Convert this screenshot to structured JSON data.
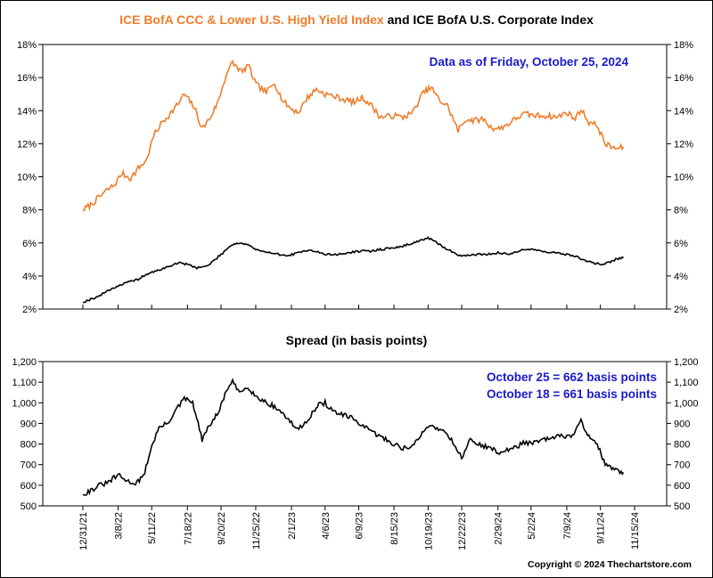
{
  "chart_data": [
    {
      "type": "line",
      "title_part1": "ICE BofA CCC & Lower U.S. High Yield Index",
      "title_part2": " and ICE BofA U.S. Corporate Index",
      "annotation": "Data as of Friday, October 25, 2024",
      "ylim": [
        2,
        18
      ],
      "yticks": [
        2,
        4,
        6,
        8,
        10,
        12,
        14,
        16,
        18
      ],
      "ytick_labels": [
        "2%",
        "4%",
        "6%",
        "8%",
        "10%",
        "12%",
        "14%",
        "16%",
        "18%"
      ],
      "grid": false,
      "colors": {
        "ccc": "#f07d2a",
        "corporate": "#000000",
        "title1": "#f07d2a",
        "annotation": "#1a1acc"
      },
      "series": [
        {
          "key": "ccc",
          "points": [
            [
              "2021-12-31",
              8.0
            ],
            [
              "2022-01-15",
              8.3
            ],
            [
              "2022-02-01",
              8.8
            ],
            [
              "2022-02-15",
              9.2
            ],
            [
              "2022-03-01",
              9.5
            ],
            [
              "2022-03-15",
              10.2
            ],
            [
              "2022-04-01",
              9.9
            ],
            [
              "2022-04-15",
              10.5
            ],
            [
              "2022-05-01",
              11.0
            ],
            [
              "2022-05-15",
              12.5
            ],
            [
              "2022-05-31",
              13.3
            ],
            [
              "2022-06-15",
              13.8
            ],
            [
              "2022-06-30",
              14.4
            ],
            [
              "2022-07-12",
              15.0
            ],
            [
              "2022-07-31",
              14.2
            ],
            [
              "2022-08-15",
              12.9
            ],
            [
              "2022-08-31",
              13.6
            ],
            [
              "2022-09-15",
              14.6
            ],
            [
              "2022-09-30",
              16.2
            ],
            [
              "2022-10-12",
              16.9
            ],
            [
              "2022-10-31",
              16.3
            ],
            [
              "2022-11-10",
              16.8
            ],
            [
              "2022-11-25",
              15.6
            ],
            [
              "2022-12-15",
              15.1
            ],
            [
              "2022-12-31",
              15.7
            ],
            [
              "2023-01-15",
              14.6
            ],
            [
              "2023-02-01",
              14.1
            ],
            [
              "2023-02-15",
              13.9
            ],
            [
              "2023-03-01",
              14.7
            ],
            [
              "2023-03-20",
              15.3
            ],
            [
              "2023-04-06",
              15.0
            ],
            [
              "2023-04-20",
              14.9
            ],
            [
              "2023-05-10",
              14.7
            ],
            [
              "2023-06-01",
              14.5
            ],
            [
              "2023-06-15",
              14.8
            ],
            [
              "2023-07-01",
              14.4
            ],
            [
              "2023-07-20",
              13.6
            ],
            [
              "2023-08-15",
              13.7
            ],
            [
              "2023-09-01",
              13.6
            ],
            [
              "2023-09-20",
              13.9
            ],
            [
              "2023-10-10",
              15.1
            ],
            [
              "2023-10-25",
              15.4
            ],
            [
              "2023-11-10",
              14.6
            ],
            [
              "2023-11-25",
              14.3
            ],
            [
              "2023-12-15",
              12.8
            ],
            [
              "2023-12-31",
              13.5
            ],
            [
              "2024-01-15",
              13.4
            ],
            [
              "2024-02-01",
              13.5
            ],
            [
              "2024-02-15",
              13.0
            ],
            [
              "2024-03-01",
              12.9
            ],
            [
              "2024-03-20",
              13.2
            ],
            [
              "2024-04-06",
              13.6
            ],
            [
              "2024-04-20",
              13.8
            ],
            [
              "2024-05-10",
              13.7
            ],
            [
              "2024-06-01",
              13.7
            ],
            [
              "2024-06-20",
              13.6
            ],
            [
              "2024-07-09",
              13.9
            ],
            [
              "2024-07-25",
              13.5
            ],
            [
              "2024-08-05",
              14.1
            ],
            [
              "2024-08-20",
              13.3
            ],
            [
              "2024-09-05",
              13.1
            ],
            [
              "2024-09-20",
              12.0
            ],
            [
              "2024-10-01",
              11.8
            ],
            [
              "2024-10-15",
              11.7
            ],
            [
              "2024-10-25",
              11.8
            ]
          ]
        },
        {
          "key": "corporate",
          "points": [
            [
              "2021-12-31",
              2.4
            ],
            [
              "2022-01-15",
              2.6
            ],
            [
              "2022-02-01",
              2.8
            ],
            [
              "2022-02-15",
              3.1
            ],
            [
              "2022-03-08",
              3.4
            ],
            [
              "2022-03-25",
              3.6
            ],
            [
              "2022-04-15",
              3.8
            ],
            [
              "2022-05-01",
              4.1
            ],
            [
              "2022-05-20",
              4.3
            ],
            [
              "2022-06-15",
              4.6
            ],
            [
              "2022-06-30",
              4.8
            ],
            [
              "2022-07-18",
              4.7
            ],
            [
              "2022-08-05",
              4.5
            ],
            [
              "2022-08-25",
              4.6
            ],
            [
              "2022-09-20",
              5.3
            ],
            [
              "2022-10-10",
              5.9
            ],
            [
              "2022-10-25",
              6.0
            ],
            [
              "2022-11-10",
              5.9
            ],
            [
              "2022-11-25",
              5.6
            ],
            [
              "2022-12-15",
              5.4
            ],
            [
              "2023-01-01",
              5.4
            ],
            [
              "2023-01-20",
              5.2
            ],
            [
              "2023-02-15",
              5.4
            ],
            [
              "2023-03-08",
              5.6
            ],
            [
              "2023-04-06",
              5.3
            ],
            [
              "2023-05-01",
              5.3
            ],
            [
              "2023-05-20",
              5.4
            ],
            [
              "2023-06-09",
              5.5
            ],
            [
              "2023-07-01",
              5.5
            ],
            [
              "2023-07-20",
              5.6
            ],
            [
              "2023-08-15",
              5.7
            ],
            [
              "2023-09-01",
              5.8
            ],
            [
              "2023-09-20",
              6.0
            ],
            [
              "2023-10-19",
              6.3
            ],
            [
              "2023-11-05",
              6.0
            ],
            [
              "2023-11-25",
              5.6
            ],
            [
              "2023-12-22",
              5.2
            ],
            [
              "2024-01-15",
              5.3
            ],
            [
              "2024-02-01",
              5.3
            ],
            [
              "2024-02-29",
              5.4
            ],
            [
              "2024-03-20",
              5.3
            ],
            [
              "2024-04-15",
              5.6
            ],
            [
              "2024-05-02",
              5.6
            ],
            [
              "2024-05-25",
              5.5
            ],
            [
              "2024-06-15",
              5.4
            ],
            [
              "2024-07-09",
              5.3
            ],
            [
              "2024-07-25",
              5.2
            ],
            [
              "2024-08-15",
              4.9
            ],
            [
              "2024-09-11",
              4.7
            ],
            [
              "2024-09-25",
              4.8
            ],
            [
              "2024-10-10",
              5.0
            ],
            [
              "2024-10-25",
              5.1
            ]
          ]
        }
      ]
    },
    {
      "type": "line",
      "title": "Spread (in basis points)",
      "annotations": [
        "October 25 = 662 basis points",
        "October 18 = 661 basis points"
      ],
      "ylim": [
        500,
        1200
      ],
      "yticks": [
        500,
        600,
        700,
        800,
        900,
        1000,
        1100,
        1200
      ],
      "ytick_labels": [
        "500",
        "600",
        "700",
        "800",
        "900",
        "1,000",
        "1,100",
        "1,200"
      ],
      "xtick_labels": [
        "12/31/21",
        "3/8/22",
        "5/11/22",
        "7/18/22",
        "9/20/22",
        "11/25/22",
        "2/1/23",
        "4/6/23",
        "6/9/23",
        "8/15/23",
        "10/19/23",
        "12/22/23",
        "2/29/24",
        "5/2/24",
        "7/9/24",
        "9/11/24",
        "11/15/24"
      ],
      "grid": false,
      "colors": {
        "line": "#000000",
        "annotation": "#1a1acc"
      },
      "series": [
        {
          "key": "spread",
          "points": [
            [
              "2021-12-31",
              555
            ],
            [
              "2022-01-15",
              575
            ],
            [
              "2022-02-01",
              600
            ],
            [
              "2022-02-15",
              610
            ],
            [
              "2022-03-08",
              650
            ],
            [
              "2022-03-25",
              620
            ],
            [
              "2022-04-10",
              610
            ],
            [
              "2022-04-25",
              640
            ],
            [
              "2022-05-11",
              790
            ],
            [
              "2022-05-25",
              880
            ],
            [
              "2022-06-10",
              900
            ],
            [
              "2022-06-25",
              960
            ],
            [
              "2022-07-12",
              1020
            ],
            [
              "2022-07-28",
              1000
            ],
            [
              "2022-08-15",
              820
            ],
            [
              "2022-08-31",
              900
            ],
            [
              "2022-09-15",
              950
            ],
            [
              "2022-09-30",
              1060
            ],
            [
              "2022-10-12",
              1100
            ],
            [
              "2022-10-25",
              1050
            ],
            [
              "2022-11-10",
              1080
            ],
            [
              "2022-11-25",
              1030
            ],
            [
              "2022-12-10",
              1010
            ],
            [
              "2022-12-31",
              980
            ],
            [
              "2023-01-15",
              950
            ],
            [
              "2023-02-01",
              900
            ],
            [
              "2023-02-15",
              870
            ],
            [
              "2023-03-10",
              940
            ],
            [
              "2023-03-25",
              990
            ],
            [
              "2023-04-06",
              1000
            ],
            [
              "2023-04-20",
              960
            ],
            [
              "2023-05-10",
              940
            ],
            [
              "2023-06-01",
              920
            ],
            [
              "2023-06-20",
              880
            ],
            [
              "2023-07-10",
              850
            ],
            [
              "2023-07-25",
              830
            ],
            [
              "2023-08-15",
              800
            ],
            [
              "2023-09-01",
              780
            ],
            [
              "2023-09-20",
              790
            ],
            [
              "2023-10-05",
              840
            ],
            [
              "2023-10-19",
              890
            ],
            [
              "2023-11-05",
              880
            ],
            [
              "2023-11-25",
              850
            ],
            [
              "2023-12-10",
              790
            ],
            [
              "2023-12-22",
              730
            ],
            [
              "2024-01-05",
              820
            ],
            [
              "2024-01-20",
              800
            ],
            [
              "2024-02-05",
              790
            ],
            [
              "2024-02-29",
              760
            ],
            [
              "2024-03-20",
              770
            ],
            [
              "2024-04-06",
              790
            ],
            [
              "2024-04-20",
              810
            ],
            [
              "2024-05-02",
              800
            ],
            [
              "2024-05-25",
              820
            ],
            [
              "2024-06-15",
              830
            ],
            [
              "2024-07-01",
              840
            ],
            [
              "2024-07-20",
              840
            ],
            [
              "2024-08-05",
              910
            ],
            [
              "2024-08-20",
              840
            ],
            [
              "2024-09-05",
              800
            ],
            [
              "2024-09-20",
              700
            ],
            [
              "2024-10-05",
              680
            ],
            [
              "2024-10-18",
              661
            ],
            [
              "2024-10-25",
              662
            ]
          ]
        }
      ]
    }
  ],
  "copyright": "Copyright © 2024 Thechartstore.com"
}
